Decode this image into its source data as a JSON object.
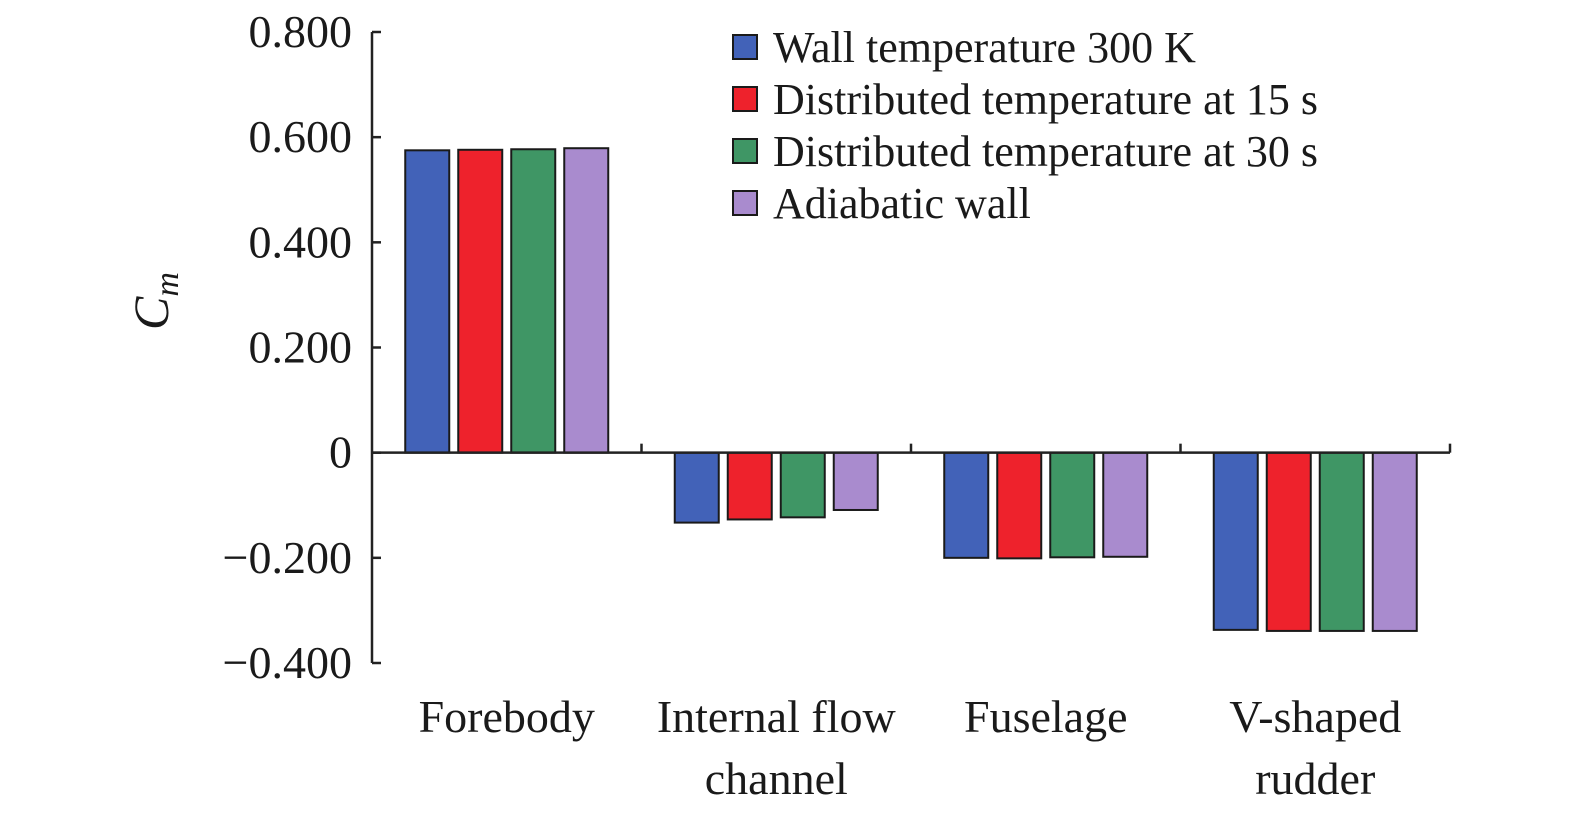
{
  "chart_data": {
    "type": "bar",
    "categories": [
      [
        "Forebody"
      ],
      [
        "Internal flow",
        "channel"
      ],
      [
        "Fuselage"
      ],
      [
        "V-shaped",
        "rudder"
      ]
    ],
    "series": [
      {
        "name": "Wall temperature 300 K",
        "color": "#4262B8",
        "values": [
          0.575,
          -0.133,
          -0.2,
          -0.337
        ]
      },
      {
        "name": "Distributed temperature at 15 s",
        "color": "#EE222C",
        "values": [
          0.576,
          -0.127,
          -0.201,
          -0.339
        ]
      },
      {
        "name": "Distributed temperature at 30 s",
        "color": "#3F9665",
        "values": [
          0.577,
          -0.123,
          -0.199,
          -0.339
        ]
      },
      {
        "name": "Adiabatic wall",
        "color": "#A98BCE",
        "values": [
          0.579,
          -0.109,
          -0.198,
          -0.339
        ]
      }
    ],
    "ylabel_main": "C",
    "ylabel_sub": "m",
    "ylim": [
      -0.4,
      0.8
    ],
    "yticks": [
      0.8,
      0.6,
      0.4,
      0.2,
      0,
      -0.2,
      -0.4
    ],
    "ytick_labels": [
      "0.800",
      "0.600",
      "0.400",
      "0.200",
      "0",
      "−0.200",
      "−0.400"
    ],
    "legend_position": "top-right",
    "grid": false
  }
}
